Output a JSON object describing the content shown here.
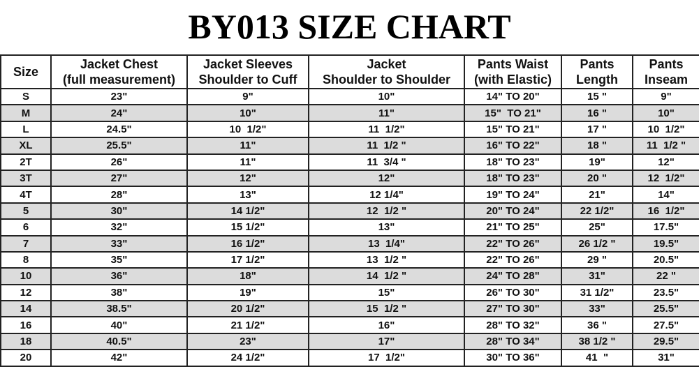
{
  "title": "BY013 SIZE CHART",
  "colors": {
    "alt_row": "#dcdcdc",
    "border": "#222222"
  },
  "headers": [
    [
      "Size",
      ""
    ],
    [
      "Jacket Chest",
      "(full measurement)"
    ],
    [
      "Jacket Sleeves",
      "Shoulder to Cuff"
    ],
    [
      "Jacket",
      "Shoulder to Shoulder"
    ],
    [
      "Pants Waist",
      "(with Elastic)"
    ],
    [
      "Pants",
      "Length"
    ],
    [
      "Pants",
      "Inseam"
    ]
  ],
  "rows": [
    [
      "S",
      "23\"",
      "9\"",
      "10\"",
      "14\" TO 20\"",
      "15 \"",
      "9\""
    ],
    [
      "M",
      "24\"",
      "10\"",
      "11\"",
      "15\"  TO 21\"",
      "16 \"",
      "10\""
    ],
    [
      "L",
      "24.5\"",
      "10  1/2\"",
      "11  1/2\"",
      "15\" TO 21\"",
      "17 \"",
      "10  1/2\""
    ],
    [
      "XL",
      "25.5\"",
      "11\"",
      "11  1/2 \"",
      "16\" TO 22\"",
      "18 \"",
      "11  1/2 \""
    ],
    [
      "2T",
      "26\"",
      "11\"",
      "11  3/4 \"",
      "18\" TO 23\"",
      "19\"",
      "12\""
    ],
    [
      "3T",
      "27\"",
      "12\"",
      "12\"",
      "18\" TO 23\"",
      "20 \"",
      "12  1/2\""
    ],
    [
      "4T",
      "28\"",
      "13\"",
      "12 1/4\"",
      "19\" TO 24\"",
      "21\"",
      "14\""
    ],
    [
      "5",
      "30\"",
      "14 1/2\"",
      "12  1/2 \"",
      "20\" TO 24\"",
      "22 1/2\"",
      "16  1/2\""
    ],
    [
      "6",
      "32\"",
      "15 1/2\"",
      "13\"",
      "21\" TO 25\"",
      "25\"",
      "17.5\""
    ],
    [
      "7",
      "33\"",
      "16 1/2\"",
      "13  1/4\"",
      "22\" TO 26\"",
      "26 1/2 \"",
      "19.5\""
    ],
    [
      "8",
      "35\"",
      "17 1/2\"",
      "13  1/2 \"",
      "22\" TO 26\"",
      "29 \"",
      "20.5\""
    ],
    [
      "10",
      "36\"",
      "18\"",
      "14  1/2 \"",
      "24\" TO 28\"",
      "31\"",
      "22 \""
    ],
    [
      "12",
      "38\"",
      "19\"",
      "15\"",
      "26\" TO 30\"",
      "31 1/2\"",
      "23.5\""
    ],
    [
      "14",
      "38.5\"",
      "20 1/2\"",
      "15  1/2 \"",
      "27\" TO 30\"",
      "33\"",
      "25.5\""
    ],
    [
      "16",
      "40\"",
      "21 1/2\"",
      "16\"",
      "28\" TO 32\"",
      "36 \"",
      "27.5\""
    ],
    [
      "18",
      "40.5\"",
      "23\"",
      "17\"",
      "28\" TO 34\"",
      "38 1/2 \"",
      "29.5\""
    ],
    [
      "20",
      "42\"",
      "24 1/2\"",
      "17  1/2\"",
      "30\" TO 36\"",
      "41  \"",
      "31\""
    ]
  ]
}
